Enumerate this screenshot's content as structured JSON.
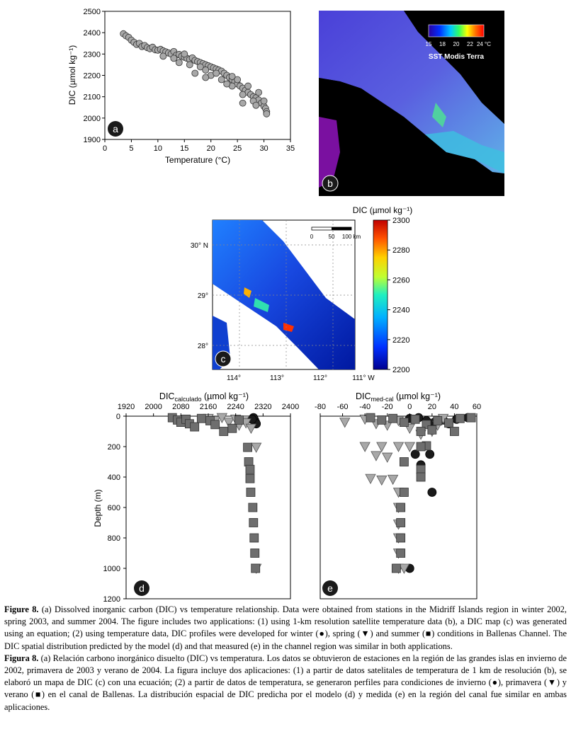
{
  "panels": {
    "a": {
      "letter": "a",
      "xlabel": "Temperature (°C)",
      "ylabel": "DIC (µmol kg⁻¹)",
      "xticks": [
        "0",
        "5",
        "10",
        "15",
        "20",
        "25",
        "30",
        "35"
      ],
      "yticks": [
        "1900",
        "2000",
        "2100",
        "2200",
        "2300",
        "2400",
        "2500"
      ]
    },
    "b": {
      "letter": "b",
      "colorbar_ticks": [
        "15",
        "18",
        "20",
        "22",
        "24 °C"
      ],
      "colorbar_label": "SST Modis Terra"
    },
    "c": {
      "letter": "c",
      "colorbar_title": "DIC (µmol kg⁻¹)",
      "colorbar_ticks": [
        "2300",
        "2280",
        "2260",
        "2240",
        "2220",
        "2200"
      ],
      "lat_labels": [
        "30° N",
        "29°",
        "28°"
      ],
      "lon_labels": [
        "114°",
        "113°",
        "112°",
        "111° W"
      ],
      "scale_labels": [
        "0",
        "50",
        "100 km"
      ]
    },
    "d": {
      "letter": "d",
      "title_main": "DIC",
      "title_sub": "calculado",
      "title_unit": " (µmol kg⁻¹)",
      "ylabel": "Depth (m)",
      "xticks": [
        "1920",
        "2000",
        "2080",
        "2160",
        "2240",
        "2320",
        "2400"
      ],
      "yticks": [
        "0",
        "200",
        "400",
        "600",
        "800",
        "1000",
        "1200"
      ]
    },
    "e": {
      "letter": "e",
      "title_main": "DIC",
      "title_sub": "med-cal",
      "title_unit": " (µmol kg⁻¹)",
      "xticks": [
        "-80",
        "-60",
        "-40",
        "-20",
        "0",
        "20",
        "40",
        "60"
      ]
    }
  },
  "chart_data": [
    {
      "type": "scatter",
      "panel": "a",
      "xlabel": "Temperature (°C)",
      "ylabel": "DIC (µmol kg⁻¹)",
      "xlim": [
        0,
        35
      ],
      "ylim": [
        1900,
        2500
      ],
      "points": [
        [
          3.5,
          2395
        ],
        [
          4,
          2385
        ],
        [
          4.5,
          2378
        ],
        [
          5,
          2365
        ],
        [
          5.5,
          2355
        ],
        [
          6,
          2345
        ],
        [
          6.5,
          2350
        ],
        [
          7,
          2335
        ],
        [
          7.5,
          2340
        ],
        [
          8,
          2330
        ],
        [
          8.5,
          2325
        ],
        [
          9,
          2332
        ],
        [
          9.5,
          2320
        ],
        [
          10,
          2318
        ],
        [
          10.5,
          2322
        ],
        [
          11,
          2315
        ],
        [
          11.5,
          2310
        ],
        [
          12,
          2305
        ],
        [
          12.5,
          2300
        ],
        [
          13,
          2312
        ],
        [
          13.5,
          2295
        ],
        [
          14,
          2298
        ],
        [
          14.5,
          2290
        ],
        [
          15,
          2285
        ],
        [
          15.5,
          2280
        ],
        [
          16,
          2275
        ],
        [
          16.5,
          2282
        ],
        [
          17,
          2270
        ],
        [
          17.5,
          2265
        ],
        [
          18,
          2260
        ],
        [
          18.5,
          2255
        ],
        [
          19,
          2250
        ],
        [
          19.5,
          2245
        ],
        [
          20,
          2240
        ],
        [
          20.5,
          2235
        ],
        [
          21,
          2230
        ],
        [
          21.5,
          2225
        ],
        [
          22,
          2220
        ],
        [
          22.5,
          2210
        ],
        [
          23,
          2200
        ],
        [
          23.5,
          2190
        ],
        [
          24,
          2180
        ],
        [
          24.5,
          2170
        ],
        [
          25,
          2160
        ],
        [
          25.5,
          2150
        ],
        [
          26,
          2140
        ],
        [
          26.5,
          2130
        ],
        [
          27,
          2120
        ],
        [
          27.5,
          2110
        ],
        [
          28,
          2100
        ],
        [
          28.5,
          2095
        ],
        [
          29,
          2085
        ],
        [
          29.5,
          2070
        ],
        [
          30,
          2055
        ],
        [
          30.3,
          2045
        ],
        [
          30.5,
          2030
        ],
        [
          13,
          2280
        ],
        [
          15,
          2300
        ],
        [
          18,
          2240
        ],
        [
          20,
          2200
        ],
        [
          22,
          2180
        ],
        [
          24,
          2150
        ],
        [
          26,
          2110
        ],
        [
          28,
          2080
        ],
        [
          17,
          2210
        ],
        [
          19,
          2190
        ],
        [
          25,
          2180
        ],
        [
          27,
          2150
        ],
        [
          29,
          2120
        ],
        [
          16,
          2250
        ],
        [
          21,
          2210
        ],
        [
          23,
          2160
        ],
        [
          30,
          2080
        ],
        [
          30.5,
          2020
        ],
        [
          11,
          2290
        ],
        [
          14,
          2260
        ],
        [
          19,
          2225
        ],
        [
          24,
          2195
        ],
        [
          26,
          2070
        ],
        [
          28.5,
          2060
        ]
      ]
    },
    {
      "type": "scatter",
      "panel": "d",
      "title": "DIC calculado (µmol kg⁻¹)",
      "ylabel": "Depth (m)",
      "xlim": [
        1920,
        2400
      ],
      "ylim": [
        1200,
        0
      ],
      "series": [
        {
          "name": "winter",
          "marker": "circle",
          "points": [
            [
              2290,
              15
            ],
            [
              2295,
              25
            ],
            [
              2298,
              40
            ],
            [
              2292,
              10
            ],
            [
              2300,
              50
            ],
            [
              2288,
              20
            ]
          ]
        },
        {
          "name": "spring",
          "marker": "triangle-down",
          "points": [
            [
              2160,
              15
            ],
            [
              2180,
              30
            ],
            [
              2200,
              10
            ],
            [
              2220,
              40
            ],
            [
              2240,
              20
            ],
            [
              2250,
              60
            ],
            [
              2265,
              25
            ],
            [
              2270,
              45
            ],
            [
              2285,
              80
            ],
            [
              2300,
              205
            ],
            [
              2300,
              1000
            ]
          ]
        },
        {
          "name": "summer",
          "marker": "square",
          "points": [
            [
              2055,
              10
            ],
            [
              2070,
              25
            ],
            [
              2080,
              40
            ],
            [
              2095,
              20
            ],
            [
              2105,
              50
            ],
            [
              2120,
              70
            ],
            [
              2140,
              15
            ],
            [
              2165,
              30
            ],
            [
              2180,
              55
            ],
            [
              2205,
              100
            ],
            [
              2230,
              80
            ],
            [
              2250,
              25
            ],
            [
              2275,
              205
            ],
            [
              2278,
              300
            ],
            [
              2282,
              350
            ],
            [
              2282,
              410
            ],
            [
              2284,
              500
            ],
            [
              2290,
              600
            ],
            [
              2292,
              700
            ],
            [
              2294,
              800
            ],
            [
              2296,
              900
            ],
            [
              2298,
              1000
            ]
          ]
        }
      ]
    },
    {
      "type": "scatter",
      "panel": "e",
      "title": "DIC med-cal (µmol kg⁻¹)",
      "xlim": [
        -80,
        60
      ],
      "ylim": [
        1200,
        0
      ],
      "series": [
        {
          "name": "winter",
          "marker": "circle",
          "points": [
            [
              0,
              15
            ],
            [
              8,
              10
            ],
            [
              15,
              30
            ],
            [
              22,
              40
            ],
            [
              30,
              25
            ],
            [
              35,
              50
            ],
            [
              42,
              20
            ],
            [
              52,
              10
            ],
            [
              5,
              250
            ],
            [
              18,
              250
            ],
            [
              10,
              320
            ],
            [
              20,
              500
            ],
            [
              0,
              1000
            ]
          ]
        },
        {
          "name": "spring",
          "marker": "triangle-down",
          "points": [
            [
              -58,
              40
            ],
            [
              -40,
              20
            ],
            [
              -30,
              50
            ],
            [
              -20,
              60
            ],
            [
              -10,
              30
            ],
            [
              0,
              80
            ],
            [
              10,
              120
            ],
            [
              20,
              100
            ],
            [
              25,
              60
            ],
            [
              30,
              15
            ],
            [
              -40,
              200
            ],
            [
              -25,
              200
            ],
            [
              -10,
              200
            ],
            [
              0,
              200
            ],
            [
              -30,
              260
            ],
            [
              -20,
              270
            ],
            [
              -35,
              410
            ],
            [
              -25,
              420
            ],
            [
              -15,
              415
            ],
            [
              -10,
              500
            ],
            [
              -10,
              600
            ],
            [
              -10,
              710
            ],
            [
              -10,
              800
            ],
            [
              -10,
              900
            ],
            [
              -10,
              1000
            ],
            [
              -5,
              1000
            ]
          ]
        },
        {
          "name": "summer",
          "marker": "square",
          "points": [
            [
              -35,
              10
            ],
            [
              -25,
              25
            ],
            [
              -15,
              15
            ],
            [
              -5,
              40
            ],
            [
              5,
              20
            ],
            [
              15,
              55
            ],
            [
              25,
              30
            ],
            [
              35,
              45
            ],
            [
              45,
              15
            ],
            [
              55,
              10
            ],
            [
              10,
              100
            ],
            [
              20,
              90
            ],
            [
              40,
              100
            ],
            [
              15,
              195
            ],
            [
              10,
              200
            ],
            [
              -5,
              300
            ],
            [
              10,
              350
            ],
            [
              10,
              400
            ],
            [
              -5,
              500
            ],
            [
              -8,
              600
            ],
            [
              -8,
              700
            ],
            [
              -8,
              800
            ],
            [
              -8,
              900
            ],
            [
              -12,
              1000
            ]
          ]
        }
      ]
    }
  ],
  "caption": {
    "en_bold_head": "Figure 8.",
    "en_p1": " (a) Dissolved inorganic carbon (DIC) vs temperature relationship. Data were obtained from stations in the Midriff Islands region in winter 2002, spring 2003, and summer 2004. The figure includes two applications: (1) using 1-km resolution satellite temperature data (b), a DIC map (c) was generated using an equation; (2) using temperature data, DIC profiles were developed for winter (●), spring (▼) and summer (■) conditions in Ballenas Channel. The DIC spatial distribution predicted by the model (d) and that measured (e) in the channel region was similar in both applications.",
    "es_bold_head": "Figura 8.",
    "es_p1": " (a) Relación carbono inorgánico disuelto (DIC) vs temperatura. Los datos se obtuvieron de estaciones en la región de las grandes islas en invierno de 2002, primavera de 2003 y verano de 2004. La figura incluye dos aplicaciones: (1) a partir de datos satelitales de temperatura de 1 km de resolución (b), se elaboró un mapa de DIC (c) con una ecuación; (2) a partir de datos de temperatura, se generaron perfiles para condiciones de invierno (●), primavera (▼) y verano (■) en el canal de Ballenas. La distribución espacial de DIC predicha por el modelo (d) y medida (e) en la región del canal fue similar en ambas aplicaciones."
  },
  "colors": {
    "marker_gray": "#a8a8a8",
    "marker_dark": "#6e6e6e",
    "marker_black": "#1a1a1a",
    "map_black": "#000000"
  }
}
